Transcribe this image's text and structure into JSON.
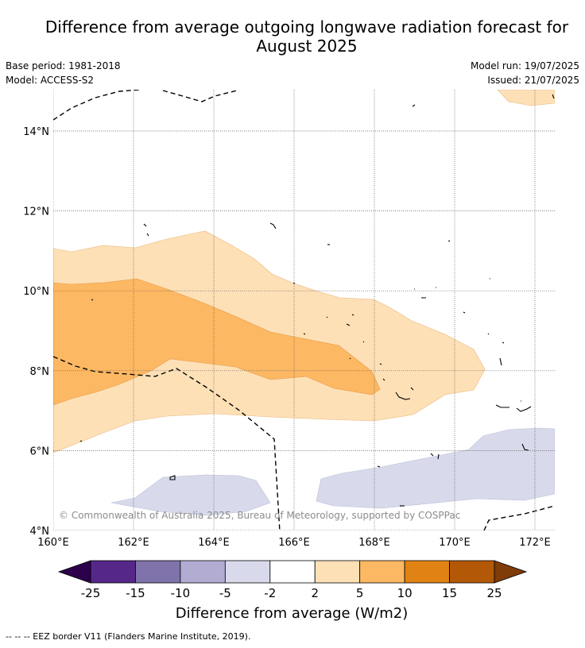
{
  "title": "Difference from average outgoing longwave radiation forecast for August 2025",
  "title_line1": "Difference from average outgoing longwave radiation forecast for",
  "title_line2": "August 2025",
  "base_period": "Base period: 1981-2018",
  "model": "Model: ACCESS-S2",
  "model_run": "Model run: 19/07/2025",
  "issued": "Issued: 21/07/2025",
  "copyright": "© Commonwealth of Australia 2025, Bureau of Meteorology, supported by COSPPac",
  "footer": "--  --  -- EEZ border V11 (Flanders Marine Institute, 2019).",
  "colorbar_label": "Difference from average (W/m2)",
  "lat_labels": [
    "14°N",
    "12°N",
    "10°N",
    "8°N",
    "6°N",
    "4°N"
  ],
  "lon_labels": [
    "160°E",
    "162°E",
    "164°E",
    "166°E",
    "168°E",
    "170°E",
    "172°E"
  ],
  "colorbar_ticks": [
    "-25",
    "-15",
    "-10",
    "-5",
    "-2",
    "2",
    "5",
    "10",
    "15",
    "25"
  ],
  "colorbar_colors": {
    "under": "#2d004b",
    "bins": [
      "#542788",
      "#8073ac",
      "#b2abd2",
      "#d8daeb",
      "#ffffff",
      "#fee0b6",
      "#fdb863",
      "#e08214",
      "#b35806"
    ],
    "over": "#7f3b08"
  },
  "map_extent": {
    "lon": [
      160,
      172.5
    ],
    "lat": [
      4,
      15
    ]
  }
}
